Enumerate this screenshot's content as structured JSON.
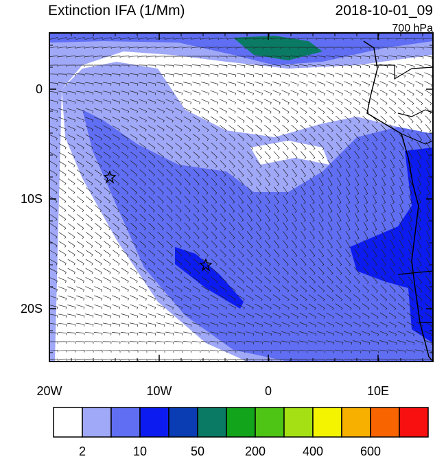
{
  "header": {
    "title": "Extinction IFA (1/Mm)",
    "time": "2018-10-01_09",
    "level": "700 hPa"
  },
  "axes": {
    "lat_labels": [
      "0",
      "10S",
      "20S"
    ],
    "lon_labels": [
      "20W",
      "10W",
      "0",
      "10E"
    ]
  },
  "colorbar": {
    "colors": [
      "#ffffff",
      "#a0a8f8",
      "#5f6ef2",
      "#0c1cf0",
      "#0a3cb4",
      "#0a7a64",
      "#12a41a",
      "#4ec414",
      "#a4e014",
      "#f4f400",
      "#f8b000",
      "#f86400",
      "#f81010"
    ],
    "labels": [
      "2",
      "10",
      "50",
      "200",
      "400",
      "600"
    ]
  }
}
